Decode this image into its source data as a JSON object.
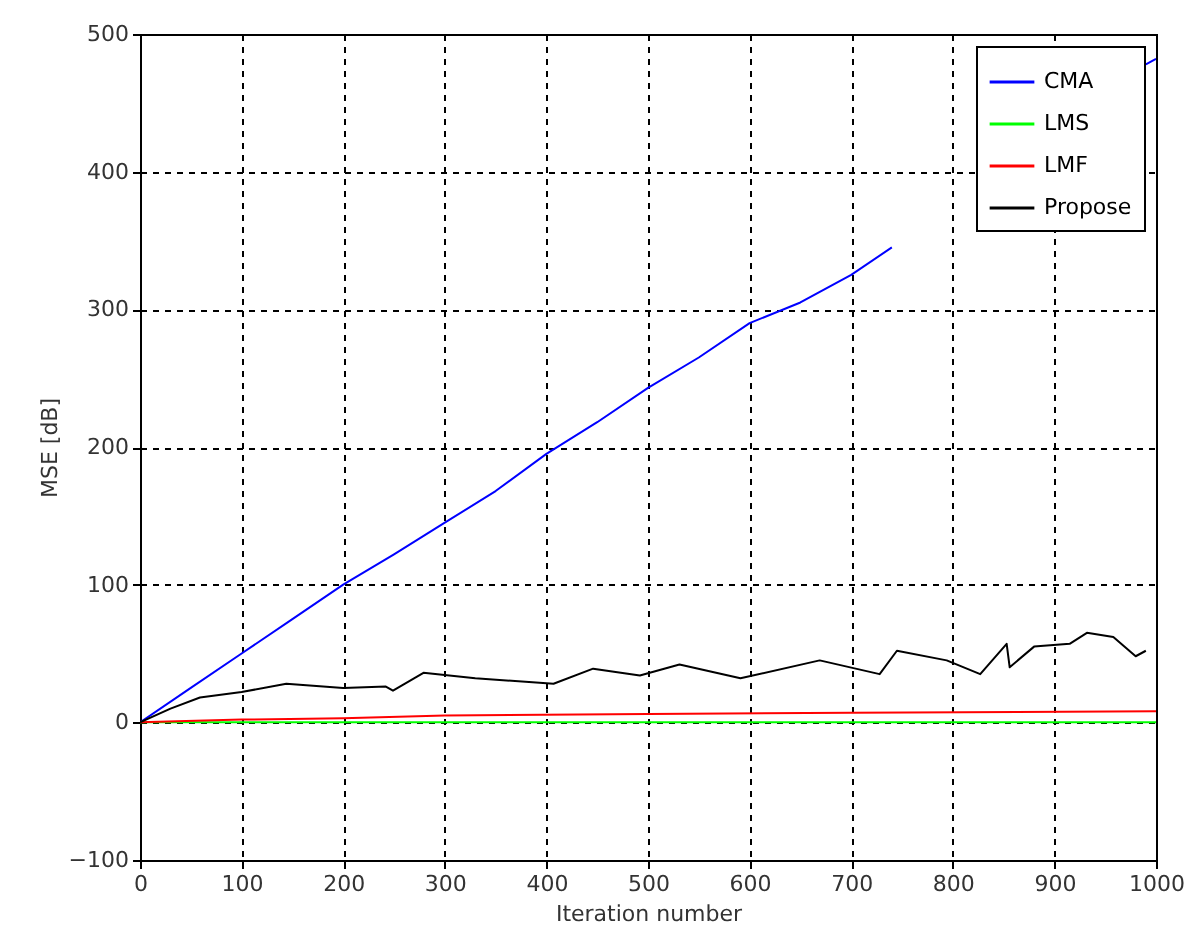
{
  "chart_data": {
    "type": "line",
    "xlabel": "Iteration number",
    "ylabel": "MSE [dB]",
    "xlim": [
      0,
      1000
    ],
    "xticks": [
      0,
      100,
      200,
      300,
      400,
      500,
      600,
      700,
      800,
      900,
      1000
    ],
    "ylim": [
      -100,
      500
    ],
    "yticks": [
      -100,
      0,
      100,
      200,
      300,
      400,
      500
    ],
    "grid": true,
    "legend": "top right",
    "series": [
      {
        "name": "CMA",
        "color": "#0000ff",
        "x": [
          0,
          50,
          100,
          150,
          200,
          250,
          300,
          350,
          400,
          450,
          500,
          550,
          600,
          650,
          700,
          740,
          760,
          985,
          990,
          1000
        ],
        "values": [
          0,
          25,
          50,
          75,
          100,
          122,
          145,
          168,
          195,
          218,
          243,
          265,
          290,
          305,
          325,
          345,
          null,
          null,
          478,
          482
        ]
      },
      {
        "name": "LMS",
        "color": "#00ff00",
        "x": [
          0,
          500,
          1000
        ],
        "values": [
          0,
          0,
          0
        ]
      },
      {
        "name": "LMF",
        "color": "#ff0000",
        "x": [
          0,
          100,
          200,
          300,
          500,
          700,
          1000
        ],
        "values": [
          0,
          2,
          3,
          5,
          6,
          7,
          8
        ]
      },
      {
        "name": "Propose",
        "color": "#000000",
        "x": [
          0,
          30,
          59,
          100,
          144,
          200,
          242,
          249,
          279,
          330,
          407,
          446,
          492,
          531,
          591,
          669,
          728,
          745,
          794,
          827,
          853,
          856,
          880,
          915,
          932,
          958,
          980,
          990
        ],
        "values": [
          0,
          10,
          18,
          22,
          28,
          25,
          26,
          23,
          36,
          32,
          28,
          39,
          34,
          42,
          32,
          45,
          35,
          52,
          45,
          35,
          57,
          40,
          55,
          57,
          65,
          62,
          48,
          52
        ]
      }
    ]
  }
}
